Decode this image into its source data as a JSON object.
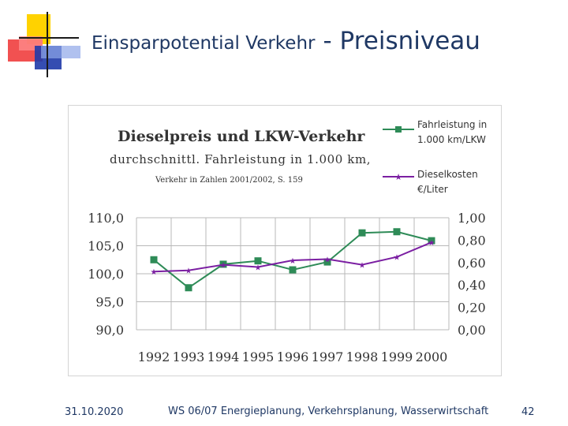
{
  "slide": {
    "title_main": "Einsparpotential Verkehr",
    "title_sub": "- Preisniveau",
    "footer_date": "31.10.2020",
    "footer_course": "WS 06/07 Energieplanung, Verkehrsplanung, Wasserwirtschaft",
    "page_number": "42"
  },
  "colors": {
    "title": "#1f3864",
    "logo_yellow": "#ffd200",
    "logo_red": "#ee3333",
    "logo_blue": "#1f3aa8",
    "series_truck": "#2e8b57",
    "series_diesel": "#7b1fa2",
    "grid": "#b8b8b8"
  },
  "chart_data": {
    "type": "line",
    "title": "Dieselpreis und LKW-Verkehr",
    "subtitle": "durchschnittl. Fahrleistung in 1.000 km,",
    "source": "Verkehr in Zahlen 2001/2002, S. 159",
    "categories": [
      "1992",
      "1993",
      "1994",
      "1995",
      "1996",
      "1997",
      "1998",
      "1999",
      "2000"
    ],
    "y_left": {
      "range": [
        90,
        110
      ],
      "ticks": [
        110,
        105,
        100,
        95,
        90
      ],
      "tick_labels": [
        "110,0",
        "105,0",
        "100,0",
        "95,0",
        "90,0"
      ]
    },
    "y_right": {
      "range": [
        0,
        1
      ],
      "ticks": [
        1.0,
        0.8,
        0.6,
        0.4,
        0.2,
        0.0
      ],
      "tick_labels": [
        "1,00",
        "0,80",
        "0,60",
        "0,40",
        "0,20",
        "0,00"
      ]
    },
    "series": [
      {
        "name": "Fahrleistung in 1.000 km/LKW",
        "legend_line1": "Fahrleistung in",
        "legend_line2": "1.000 km/LKW",
        "axis": "left",
        "marker": "square",
        "values": [
          102.5,
          97.5,
          101.7,
          102.3,
          100.7,
          102.1,
          107.3,
          107.5,
          105.9
        ]
      },
      {
        "name": "Dieselkosten €/Liter",
        "legend_line1": "Dieselkosten",
        "legend_line2": "€/Liter",
        "axis": "right",
        "marker": "star",
        "values": [
          0.52,
          0.53,
          0.58,
          0.56,
          0.62,
          0.63,
          0.58,
          0.65,
          0.78
        ]
      }
    ],
    "grid": true,
    "legend_position": "top-right"
  }
}
